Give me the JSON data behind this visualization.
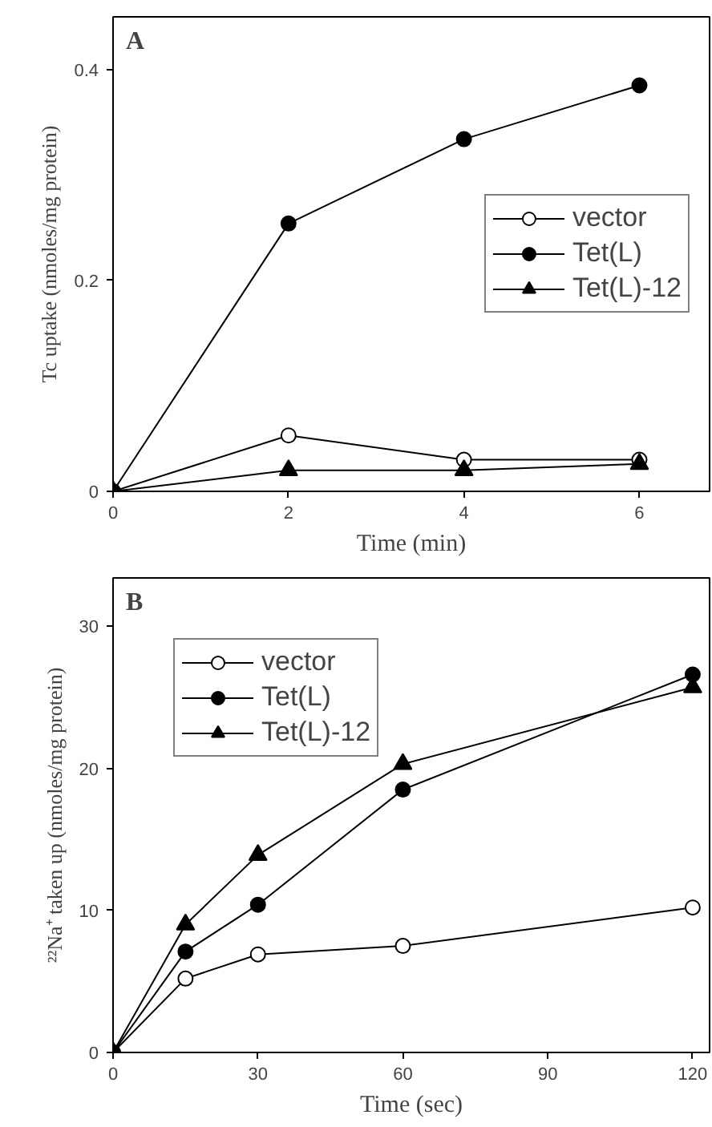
{
  "chart_data": [
    {
      "type": "line",
      "xlabel": "Time (min)",
      "ylabel": "Tc uptake (nmoles/mg protein)",
      "annotations": [
        "A"
      ],
      "x": [
        0,
        2,
        4,
        6
      ],
      "xlim": [
        0,
        6.8
      ],
      "ylim": [
        0,
        0.45
      ],
      "xticks": [
        0,
        2,
        4,
        6
      ],
      "yticks": [
        0,
        0.2,
        0.4
      ],
      "grid": false,
      "legend": "right",
      "line_style": "solid",
      "series": [
        {
          "name": "vector",
          "color": "#000000",
          "marker": "circle_open",
          "values": [
            0,
            0.053,
            0.03,
            0.03
          ]
        },
        {
          "name": "Tet(L)",
          "color": "#000000",
          "marker": "circle",
          "values": [
            0,
            0.254,
            0.334,
            0.385
          ]
        },
        {
          "name": "Tet(L)-12",
          "color": "#000000",
          "marker": "triangle",
          "values": [
            0,
            0.02,
            0.02,
            0.026
          ]
        }
      ]
    },
    {
      "type": "line",
      "xlabel": "Time (sec)",
      "ylabel": "²²Na⁺ taken up (nmoles/mg protein)",
      "annotations": [
        "B"
      ],
      "x": [
        0,
        15,
        30,
        60,
        120
      ],
      "xlim": [
        0,
        123.5
      ],
      "ylim": [
        0,
        33.4
      ],
      "xticks": [
        0,
        30,
        60,
        90,
        120
      ],
      "yticks": [
        0,
        10,
        20,
        30
      ],
      "grid": false,
      "legend": "top left",
      "line_style": "solid",
      "series": [
        {
          "name": "vector",
          "color": "#000000",
          "marker": "circle_open",
          "values": [
            0,
            5.2,
            6.9,
            7.5,
            10.2
          ]
        },
        {
          "name": "Tet(L)",
          "color": "#000000",
          "marker": "circle",
          "values": [
            0,
            7.1,
            10.4,
            18.5,
            26.6
          ]
        },
        {
          "name": "Tet(L)-12",
          "color": "#000000",
          "marker": "triangle",
          "values": [
            0,
            9.0,
            13.9,
            20.3,
            25.7
          ]
        }
      ]
    }
  ]
}
